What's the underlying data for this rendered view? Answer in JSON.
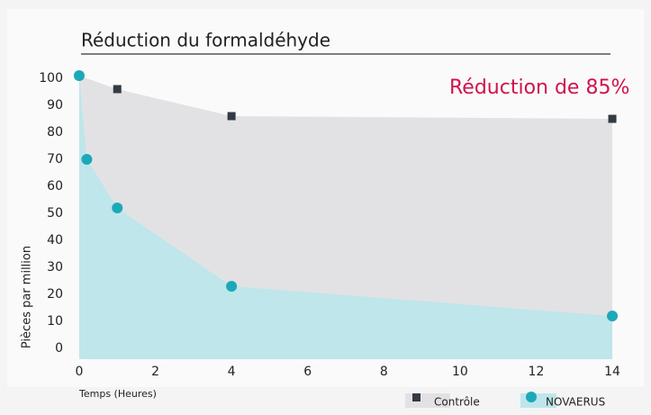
{
  "chart_data": {
    "type": "area",
    "title": "Réduction du formaldéhyde",
    "annotation": "Réduction de 85%",
    "xlabel": "Temps (Heures)",
    "ylabel": "Pièces par million",
    "series": [
      {
        "name": "Contrôle",
        "color": "#343b42",
        "fill": "#e2e2e4",
        "marker": "square",
        "x": [
          0,
          1,
          4,
          14
        ],
        "values": [
          101,
          96,
          86,
          85
        ]
      },
      {
        "name": "NOVAERUS",
        "color": "#1ba9b9",
        "fill": "#bfe6ea",
        "marker": "circle",
        "x": [
          0,
          0.2,
          1,
          4,
          14
        ],
        "values": [
          101,
          70,
          52,
          23,
          12
        ]
      }
    ],
    "xlim": [
      -0.2,
      14.2
    ],
    "xticks": [
      0,
      2,
      4,
      6,
      8,
      10,
      12,
      14
    ],
    "ylim": [
      -4,
      104
    ],
    "yticks": [
      0,
      10,
      20,
      30,
      40,
      50,
      60,
      70,
      80,
      90,
      100
    ]
  }
}
